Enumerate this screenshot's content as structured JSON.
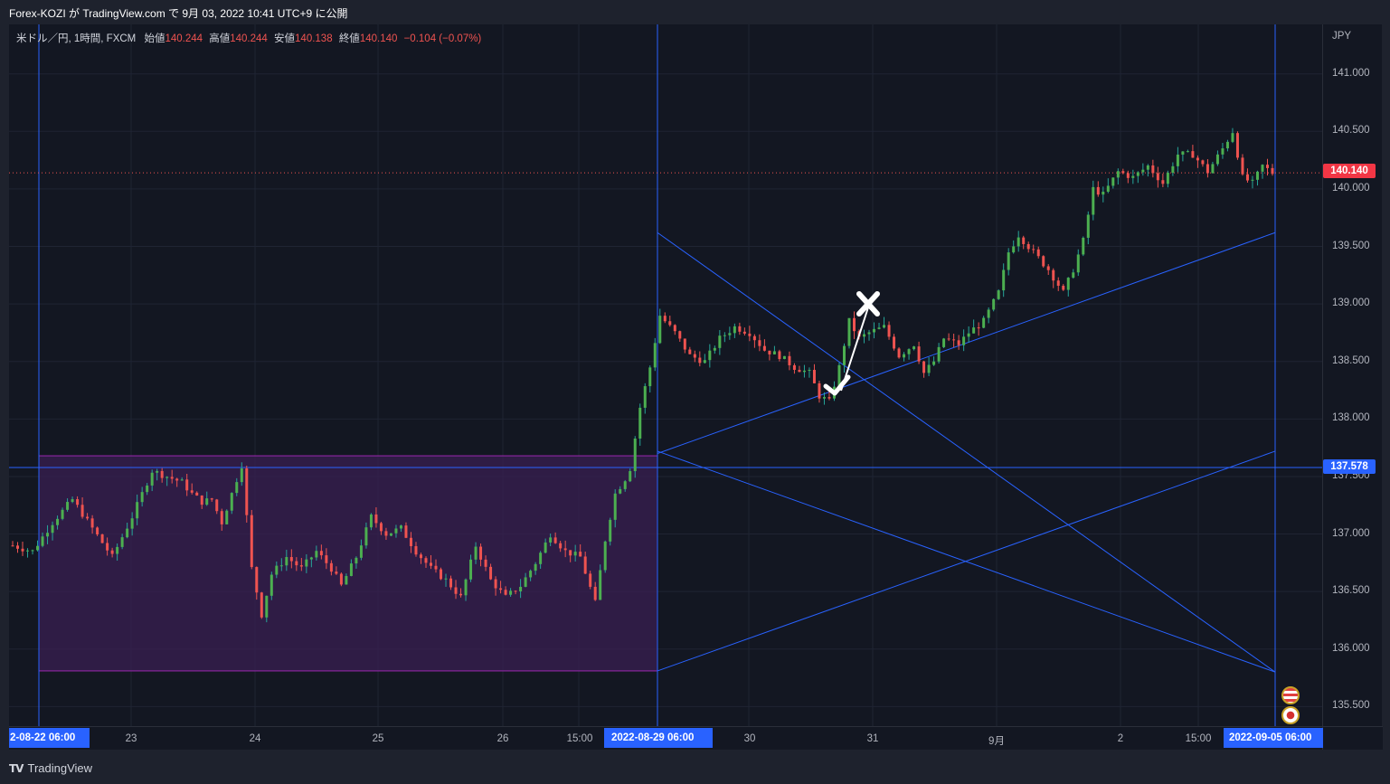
{
  "header": {
    "publication": "Forex-KOZI が TradingView.com で 9月 03, 2022 10:41 UTC+9 に公開"
  },
  "legend": {
    "symbol": "米ドル／円, 1時間, FXCM",
    "open_label": "始値",
    "open": "140.244",
    "high_label": "高値",
    "high": "140.244",
    "low_label": "安値",
    "low": "140.138",
    "close_label": "終値",
    "close": "140.140",
    "change": "−0.104 (−0.07%)"
  },
  "footer": {
    "brand": "TradingView"
  },
  "colors": {
    "up": "#26a69a",
    "up_body": "#4caf50",
    "down": "#ef5350",
    "drawing": "#2962ff",
    "box_border": "#9c27b0",
    "box_fill": "#3a1f52"
  },
  "chart_data": {
    "type": "candlestick",
    "title": "米ドル／円, 1時間, FXCM",
    "unit": "JPY",
    "y_ticks": [
      "141.000",
      "140.500",
      "140.000",
      "139.500",
      "139.000",
      "138.500",
      "138.000",
      "137.500",
      "137.000",
      "136.500",
      "136.000",
      "135.500"
    ],
    "ylim": [
      135.33,
      141.43
    ],
    "x_ticks": [
      "23",
      "24",
      "25",
      "26",
      "15:00",
      "30",
      "31",
      "9月",
      "2",
      "15:00"
    ],
    "x_range_labels": {
      "start": "2-08-22  06:00",
      "mid": "2022-08-29  06:00",
      "end": "2022-09-05  06:00"
    },
    "last_price": "140.140",
    "horizontal_line_price": "137.578",
    "range_box": {
      "top": 137.68,
      "bottom": 135.81
    },
    "projection_lines": [
      {
        "from": 139.62,
        "to": 135.8
      },
      {
        "from": 137.7,
        "to": 139.62
      },
      {
        "from": 137.72,
        "to": 135.8
      },
      {
        "from": 135.81,
        "to": 137.72
      }
    ],
    "vertical_lines": [
      "2022-08-22 06:00",
      "2022-08-29 06:00",
      "2022-09-05 06:00"
    ],
    "annotations": [
      "✗",
      "✓"
    ],
    "price_path": [
      [
        0,
        136.9
      ],
      [
        4,
        136.85
      ],
      [
        8,
        137.1
      ],
      [
        12,
        137.3
      ],
      [
        16,
        137.05
      ],
      [
        20,
        136.8
      ],
      [
        24,
        137.15
      ],
      [
        28,
        137.55
      ],
      [
        31,
        137.5
      ],
      [
        34,
        137.45
      ],
      [
        36,
        137.35
      ],
      [
        38,
        137.28
      ],
      [
        40,
        137.3
      ],
      [
        42,
        137.1
      ],
      [
        44,
        137.35
      ],
      [
        46,
        137.6
      ],
      [
        48,
        136.7
      ],
      [
        50,
        136.3
      ],
      [
        52,
        136.65
      ],
      [
        55,
        136.8
      ],
      [
        58,
        136.7
      ],
      [
        61,
        136.85
      ],
      [
        64,
        136.7
      ],
      [
        66,
        136.55
      ],
      [
        69,
        136.8
      ],
      [
        72,
        137.15
      ],
      [
        75,
        137.0
      ],
      [
        78,
        137.05
      ],
      [
        81,
        136.85
      ],
      [
        84,
        136.7
      ],
      [
        87,
        136.6
      ],
      [
        90,
        136.45
      ],
      [
        93,
        136.9
      ],
      [
        96,
        136.6
      ],
      [
        99,
        136.45
      ],
      [
        102,
        136.55
      ],
      [
        105,
        136.75
      ],
      [
        108,
        137.0
      ],
      [
        111,
        136.85
      ],
      [
        114,
        136.8
      ],
      [
        117,
        136.4
      ],
      [
        119,
        136.95
      ],
      [
        121,
        137.35
      ],
      [
        123,
        137.48
      ],
      [
        124,
        137.57
      ],
      [
        126,
        138.1
      ],
      [
        128,
        138.45
      ],
      [
        130,
        138.9
      ],
      [
        133,
        138.75
      ],
      [
        136,
        138.55
      ],
      [
        139,
        138.5
      ],
      [
        142,
        138.7
      ],
      [
        145,
        138.8
      ],
      [
        148,
        138.75
      ],
      [
        151,
        138.6
      ],
      [
        154,
        138.55
      ],
      [
        157,
        138.45
      ],
      [
        160,
        138.4
      ],
      [
        162,
        138.2
      ],
      [
        164,
        138.15
      ],
      [
        166,
        138.45
      ],
      [
        168,
        138.85
      ],
      [
        170,
        138.7
      ],
      [
        172,
        138.75
      ],
      [
        175,
        138.8
      ],
      [
        178,
        138.55
      ],
      [
        181,
        138.65
      ],
      [
        183,
        138.4
      ],
      [
        185,
        138.5
      ],
      [
        187,
        138.7
      ],
      [
        190,
        138.65
      ],
      [
        192,
        138.75
      ],
      [
        195,
        138.85
      ],
      [
        198,
        139.1
      ],
      [
        200,
        139.45
      ],
      [
        202,
        139.6
      ],
      [
        205,
        139.45
      ],
      [
        208,
        139.3
      ],
      [
        211,
        139.1
      ],
      [
        213,
        139.3
      ],
      [
        215,
        139.55
      ],
      [
        217,
        140.0
      ],
      [
        219,
        139.95
      ],
      [
        222,
        140.15
      ],
      [
        225,
        140.1
      ],
      [
        228,
        140.2
      ],
      [
        231,
        140.05
      ],
      [
        234,
        140.3
      ],
      [
        237,
        140.3
      ],
      [
        240,
        140.15
      ],
      [
        243,
        140.35
      ],
      [
        245,
        140.5
      ],
      [
        247,
        140.1
      ],
      [
        249,
        140.05
      ],
      [
        251,
        140.2
      ],
      [
        253,
        140.14
      ]
    ]
  }
}
